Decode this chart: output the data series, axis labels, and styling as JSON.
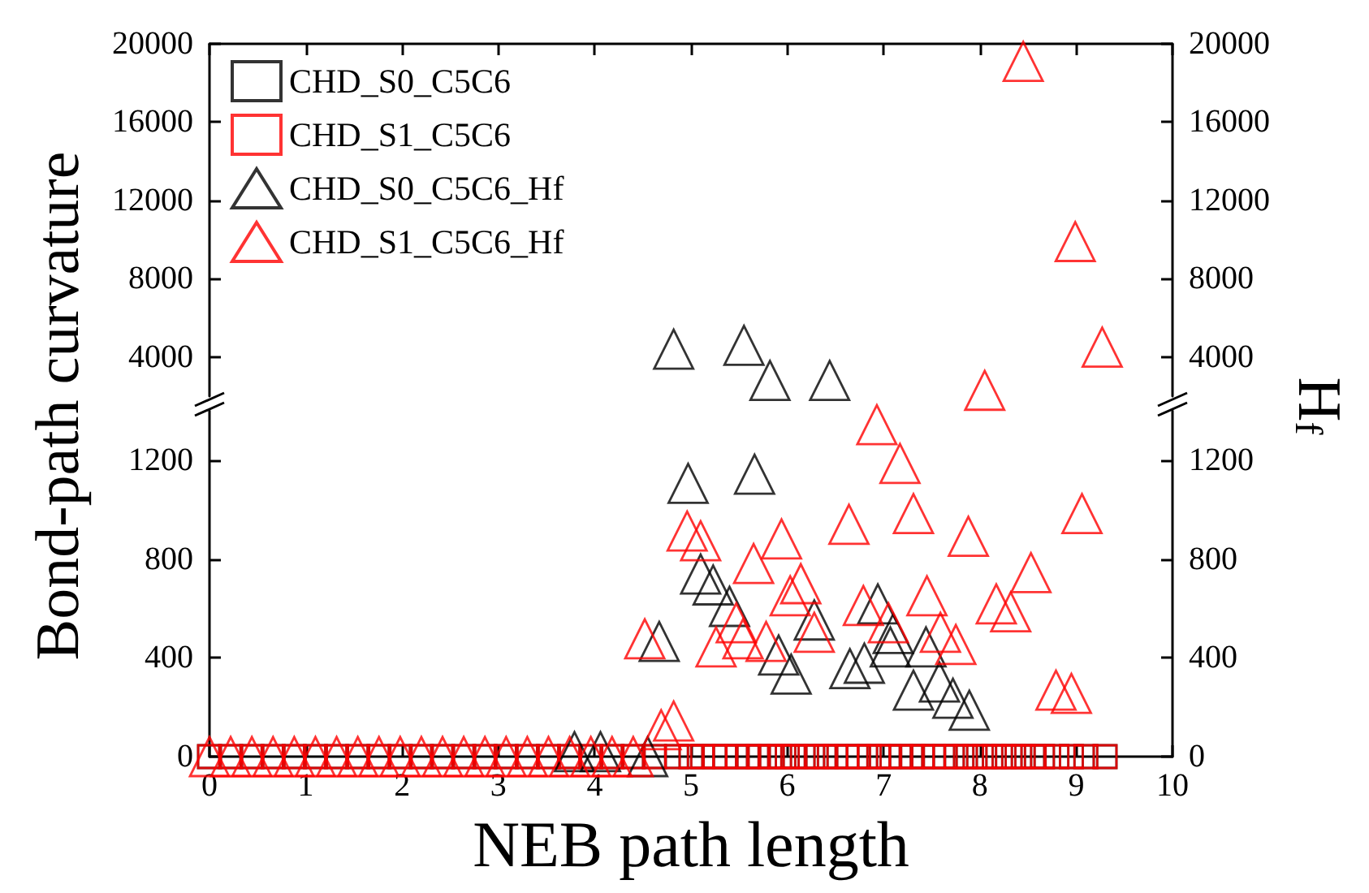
{
  "chart_data": [
    {
      "type": "scatter",
      "xlim": [
        0,
        10
      ],
      "xticks": [
        0,
        1,
        2,
        3,
        4,
        5,
        6,
        7,
        8,
        9,
        10
      ],
      "ylim": [
        2000,
        20000
      ],
      "yticks": [
        4000,
        8000,
        12000,
        16000,
        20000
      ],
      "y2lim": [
        2000,
        20000
      ],
      "y2ticks": [
        4000,
        8000,
        12000,
        16000,
        20000
      ],
      "tick_labels": "y",
      "grid": false,
      "legend": false,
      "series": [
        {
          "color": "#000000",
          "marker": "triangle",
          "x": [
            4.82,
            5.55,
            5.82,
            6.44
          ],
          "values": [
            4400,
            4600,
            2800,
            2800
          ]
        },
        {
          "color": "#ff0000",
          "marker": "triangle",
          "x": [
            8.05,
            8.45,
            8.99,
            9.27
          ],
          "values": [
            2300,
            19100,
            9900,
            4500
          ]
        }
      ]
    },
    {
      "type": "scatter",
      "xlabel": "NEB path length",
      "ylabel": "Bond-path curvature",
      "y2label": "H$_{f}$",
      "xlim": [
        0,
        10
      ],
      "xticks": [
        0,
        1,
        2,
        3,
        4,
        5,
        6,
        7,
        8,
        9,
        10
      ],
      "ylim": [
        0,
        1400
      ],
      "yticks": [
        0,
        400,
        800,
        1200
      ],
      "y2lim": [
        0,
        1400
      ],
      "y2ticks": [
        0,
        400,
        800,
        1200
      ],
      "grid": false,
      "legend": "top left",
      "series": [
        {
          "name": "CHD_S0_C5C6",
          "color": "#000000",
          "marker": "square",
          "x": [
            0,
            0.22,
            0.44,
            0.66,
            0.88,
            1.1,
            1.32,
            1.54,
            1.76,
            1.98,
            2.2,
            2.42,
            2.64,
            2.86,
            3.08,
            3.3,
            3.52,
            3.74,
            3.96,
            4.18,
            4.4,
            4.62,
            4.85,
            5.0,
            5.12,
            5.25,
            5.35,
            5.48,
            5.6,
            5.7,
            5.82,
            5.92,
            6.0,
            6.08,
            6.2,
            6.3,
            6.4,
            6.5,
            6.62,
            6.74,
            6.85,
            6.95,
            7.05,
            7.18,
            7.3,
            7.4,
            7.52,
            7.64,
            7.75,
            7.85,
            7.95,
            8.05,
            8.15,
            8.25,
            8.35,
            8.45,
            8.55,
            8.65,
            8.8,
            8.95,
            9.1,
            9.3
          ],
          "values": [
            0,
            0,
            0,
            0,
            0,
            0,
            0,
            0,
            0,
            0,
            0,
            0,
            0,
            0,
            0,
            0,
            0,
            0,
            0,
            0,
            0,
            0,
            0,
            0,
            0,
            0,
            0,
            0,
            0,
            0,
            0,
            0,
            0,
            0,
            0,
            0,
            0,
            0,
            0,
            0,
            0,
            0,
            0,
            0,
            0,
            0,
            0,
            0,
            0,
            0,
            0,
            0,
            0,
            0,
            0,
            0,
            0,
            0,
            0,
            0,
            0,
            0
          ]
        },
        {
          "name": "CHD_S1_C5C6",
          "color": "#ff0000",
          "marker": "square",
          "x": [
            0,
            0.22,
            0.44,
            0.66,
            0.88,
            1.1,
            1.32,
            1.54,
            1.76,
            1.98,
            2.2,
            2.42,
            2.64,
            2.86,
            3.08,
            3.3,
            3.52,
            3.74,
            3.96,
            4.18,
            4.4,
            4.62,
            4.85,
            5.0,
            5.12,
            5.25,
            5.35,
            5.48,
            5.6,
            5.7,
            5.82,
            5.92,
            6.0,
            6.08,
            6.2,
            6.3,
            6.4,
            6.5,
            6.62,
            6.74,
            6.85,
            6.95,
            7.05,
            7.18,
            7.3,
            7.4,
            7.52,
            7.64,
            7.75,
            7.85,
            7.95,
            8.05,
            8.15,
            8.25,
            8.35,
            8.45,
            8.55,
            8.65,
            8.8,
            8.95,
            9.1,
            9.3
          ],
          "values": [
            0,
            0,
            0,
            0,
            0,
            0,
            0,
            0,
            0,
            0,
            0,
            0,
            0,
            0,
            0,
            0,
            0,
            0,
            0,
            0,
            0,
            0,
            0,
            0,
            0,
            0,
            0,
            0,
            0,
            0,
            0,
            0,
            0,
            0,
            0,
            0,
            0,
            0,
            0,
            0,
            0,
            0,
            0,
            0,
            0,
            0,
            0,
            0,
            0,
            0,
            0,
            0,
            0,
            0,
            0,
            0,
            0,
            0,
            0,
            0,
            0,
            0
          ]
        },
        {
          "name": "CHD_S0_C5C6_Hf",
          "color": "#000000",
          "marker": "triangle",
          "x": [
            3.79,
            4.06,
            4.55,
            4.67,
            4.97,
            5.1,
            5.23,
            5.4,
            5.66,
            5.91,
            6.04,
            6.28,
            6.65,
            6.8,
            6.94,
            7.07,
            7.1,
            7.31,
            7.44,
            7.58,
            7.72,
            7.89
          ],
          "values": [
            20,
            20,
            0,
            466,
            1106,
            739,
            695,
            608,
            1143,
            411,
            334,
            553,
            356,
            378,
            618,
            444,
            498,
            269,
            444,
            302,
            236,
            188
          ]
        },
        {
          "name": "CHD_S1_C5C6_Hf",
          "color": "#ff0000",
          "marker": "triangle",
          "x": [
            0,
            0.22,
            0.44,
            0.66,
            0.88,
            1.1,
            1.32,
            1.54,
            1.76,
            1.98,
            2.2,
            2.42,
            2.64,
            2.86,
            3.08,
            3.3,
            3.52,
            3.74,
            3.96,
            4.18,
            4.4,
            4.52,
            4.69,
            4.82,
            4.96,
            5.1,
            5.26,
            5.47,
            5.54,
            5.65,
            5.78,
            5.94,
            6.03,
            6.14,
            6.28,
            6.64,
            6.79,
            6.93,
            7.05,
            7.17,
            7.31,
            7.45,
            7.59,
            7.75,
            7.88,
            8.17,
            8.32,
            8.53,
            8.79,
            8.95,
            9.06
          ],
          "values": [
            0,
            0,
            0,
            0,
            0,
            0,
            0,
            0,
            0,
            0,
            0,
            0,
            0,
            0,
            0,
            0,
            0,
            0,
            0,
            0,
            0,
            477,
            109,
            144,
            913,
            874,
            444,
            542,
            477,
            782,
            466,
            881,
            651,
            700,
            503,
            940,
            612,
            1344,
            542,
            1187,
            984,
            651,
            503,
            454,
            892,
            618,
            586,
            745,
            269,
            256,
            984
          ]
        }
      ]
    }
  ]
}
